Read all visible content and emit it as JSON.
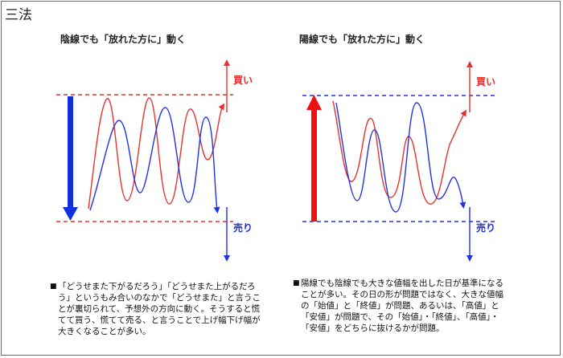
{
  "page_title": "三法",
  "left_panel": {
    "title": "陰線でも「放れた方に」動く",
    "buy_label": "買い",
    "sell_label": "売り",
    "note": "「どうせまた下がるだろう」「どうせまた上がるだろう」というもみ合いのなかで「どうせまた」と言うことが裏切られて、予想外の方向に動く。そうすると慌てて買う、慌てて売る、と言うことで上げ幅下げ幅が大きくなることが多い。"
  },
  "right_panel": {
    "title": "陽線でも「放れた方に」動く",
    "buy_label": "買い",
    "sell_label": "売り",
    "note": "陽線でも陰線でも大きな値幅を出した日が基準になることが多い。その日の形が問題ではなく、大きな値幅の「始値」と「終値」が問題、あるいは、「高値」と「安値」が問題で、その「始値」・「終値」、「高値」・「安値」をどちらに抜けるかが問題。"
  },
  "colors": {
    "red": "#e8312f",
    "blue": "#2233dd",
    "big_blue": "#1030e0",
    "big_red": "#ee1111"
  }
}
